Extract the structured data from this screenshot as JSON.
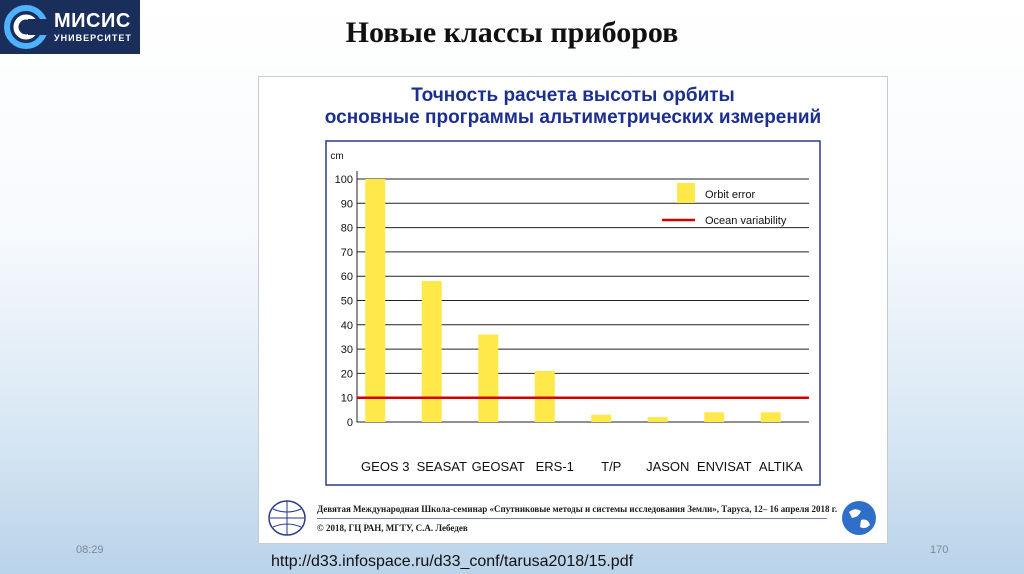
{
  "logo": {
    "title": "МИСИС",
    "subtitle": "УНИВЕРСИТЕТ"
  },
  "slide_title": "Новые классы приборов",
  "chart_data": {
    "type": "bar",
    "title_line1": "Точность расчета высоты орбиты",
    "title_line2": "основные программы альтиметрических измерений",
    "ylabel": "cm",
    "ylim": [
      0,
      100
    ],
    "yticks": [
      0,
      10,
      20,
      30,
      40,
      50,
      60,
      70,
      80,
      90,
      100
    ],
    "categories": [
      "GEOS 3",
      "SEASAT",
      "GEOSAT",
      "ERS-1",
      "T/P",
      "JASON",
      "ENVISAT",
      "ALTIKA"
    ],
    "series": [
      {
        "name": "Orbit error",
        "values": [
          100,
          58,
          36,
          21,
          3,
          2,
          4,
          4
        ]
      }
    ],
    "reference_line": {
      "name": "Ocean variability",
      "value": 10
    },
    "grid": true,
    "legend_position": "top-right",
    "colors": {
      "bar": "#ffe84a",
      "reference_line": "#d10000",
      "grid": "#222222",
      "frame": "#2a3a8c",
      "title": "#1b2f8f"
    }
  },
  "figure_footer": {
    "line1": "Девятая Международная Школа-семинар «Спутниковые методы и системы исследования Земли», Таруса, 12– 16 апреля 2018 г.",
    "line2": "© 2018, ГЦ РАН, МГТУ, С.А. Лебедев"
  },
  "slide_footer": {
    "date": "08:29",
    "page": "170",
    "url": "http://d33.infospace.ru/d33_conf/tarusa2018/15.pdf"
  }
}
